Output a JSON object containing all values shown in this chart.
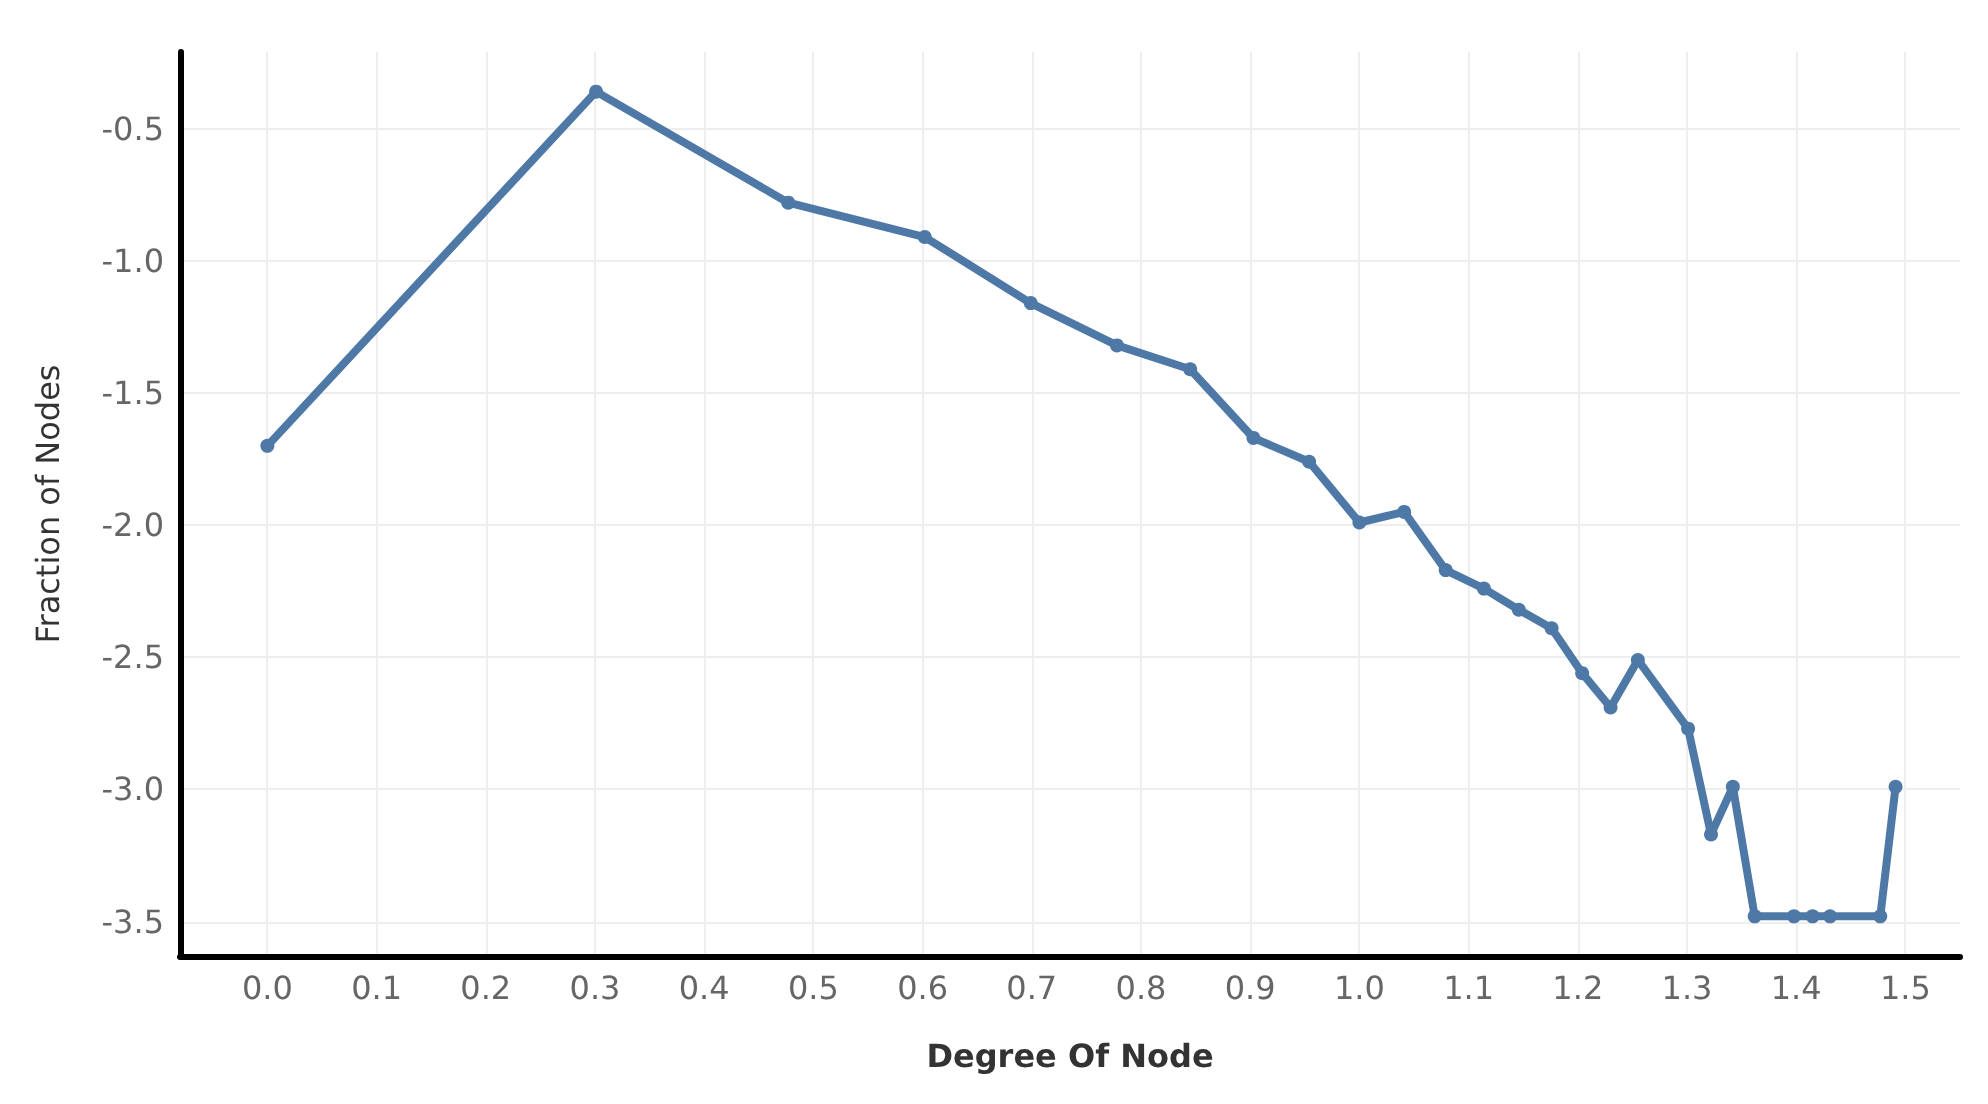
{
  "chart_data": {
    "type": "line",
    "xlabel": "Degree Of Node",
    "ylabel": "Fraction of Nodes",
    "x": [
      0,
      0.301,
      0.477,
      0.602,
      0.699,
      0.778,
      0.845,
      0.903,
      0.954,
      1.0,
      1.041,
      1.079,
      1.114,
      1.146,
      1.176,
      1.204,
      1.23,
      1.255,
      1.301,
      1.322,
      1.342,
      1.362,
      1.398,
      1.415,
      1.431,
      1.477,
      1.491
    ],
    "series": [
      {
        "color": "#4e79a7",
        "values": [
          -1.7,
          -0.36,
          -0.78,
          -0.91,
          -1.16,
          -1.32,
          -1.41,
          -1.67,
          -1.76,
          -1.99,
          -1.95,
          -2.17,
          -2.24,
          -2.32,
          -2.39,
          -2.56,
          -2.69,
          -2.51,
          -2.77,
          -3.17,
          -2.99,
          -3.48,
          -3.48,
          -3.48,
          -3.48,
          -3.48,
          -2.99
        ]
      }
    ],
    "xlim": [
      -0.08,
      1.55
    ],
    "xticks": [
      {
        "value": 0,
        "label": "0.0"
      },
      0.1,
      0.2,
      0.3,
      0.4,
      0.5,
      0.6,
      0.7,
      0.8,
      0.9,
      {
        "value": 1,
        "label": "1.0"
      },
      1.1,
      1.2,
      1.3,
      1.4,
      1.5
    ],
    "ylim": [
      -3.63,
      -0.21
    ],
    "yticks": [
      -3.5,
      {
        "value": -3,
        "label": "-3.0"
      },
      -2.5,
      {
        "value": -2,
        "label": "-2.0"
      },
      -1.5,
      {
        "value": -1,
        "label": "-1.0"
      },
      -0.5
    ],
    "grid": true,
    "marker": "circle",
    "line_style": "solid"
  }
}
